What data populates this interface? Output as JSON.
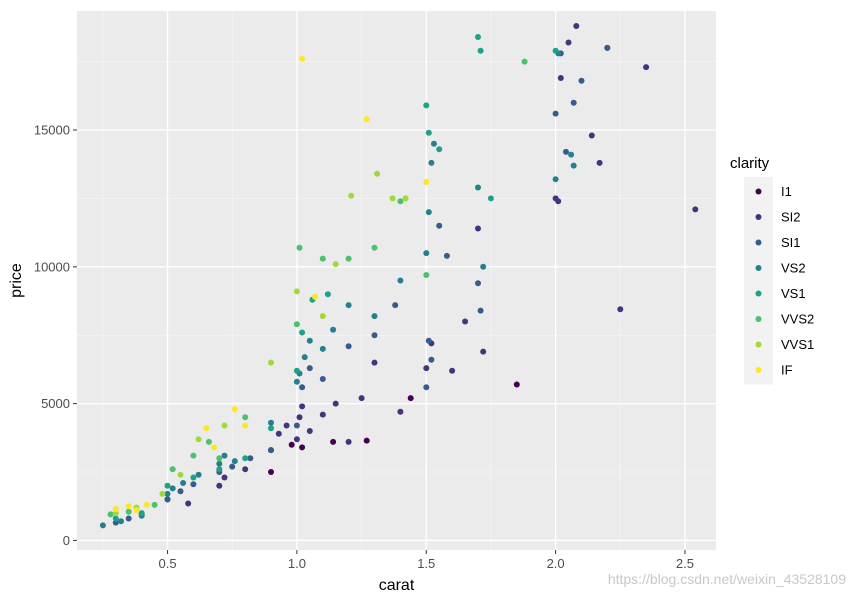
{
  "chart_data": {
    "type": "scatter",
    "xlabel": "carat",
    "ylabel": "price",
    "xlim": [
      0.15,
      2.62
    ],
    "ylim": [
      -350,
      19350
    ],
    "x_ticks": [
      0.5,
      1.0,
      1.5,
      2.0,
      2.5
    ],
    "x_tick_labels": [
      "0.5",
      "1.0",
      "1.5",
      "2.0",
      "2.5"
    ],
    "y_ticks": [
      0,
      5000,
      10000,
      15000
    ],
    "y_tick_labels": [
      "0",
      "5000",
      "10000",
      "15000"
    ],
    "grid": true,
    "legend": {
      "title": "clarity",
      "position": "right"
    },
    "series": [
      {
        "name": "I1",
        "color": "#440154",
        "x": [
          0.9,
          0.98,
          1.02,
          1.14,
          1.27,
          1.44,
          1.85
        ],
        "y": [
          2500,
          3500,
          3400,
          3600,
          3650,
          5200,
          5700
        ]
      },
      {
        "name": "SI2",
        "color": "#46337E",
        "x": [
          0.5,
          0.58,
          0.7,
          0.72,
          0.8,
          0.9,
          0.93,
          0.96,
          1.0,
          1.01,
          1.02,
          1.05,
          1.1,
          1.15,
          1.2,
          1.25,
          1.3,
          1.4,
          1.5,
          1.52,
          1.6,
          1.65,
          1.7,
          1.72,
          2.0,
          2.01,
          2.02,
          2.05,
          2.08,
          2.14,
          2.17,
          2.2,
          2.25,
          2.35,
          2.54
        ],
        "y": [
          1500,
          1350,
          2000,
          2300,
          2600,
          3300,
          3900,
          4200,
          3700,
          4500,
          4900,
          4000,
          4600,
          5000,
          3600,
          5200,
          6500,
          4700,
          6300,
          7200,
          6200,
          8000,
          11400,
          6900,
          12500,
          12400,
          16900,
          18200,
          18800,
          14800,
          13800,
          18000,
          8450,
          17300,
          12100
        ]
      },
      {
        "name": "SI1",
        "color": "#365C8D",
        "x": [
          0.3,
          0.35,
          0.4,
          0.5,
          0.55,
          0.6,
          0.7,
          0.75,
          0.82,
          0.9,
          1.0,
          1.02,
          1.05,
          1.1,
          1.2,
          1.3,
          1.38,
          1.5,
          1.51,
          1.52,
          1.55,
          1.58,
          1.7,
          1.71,
          2.0,
          2.02,
          2.04,
          2.07,
          2.1,
          2.2
        ],
        "y": [
          650,
          800,
          950,
          1500,
          1800,
          2050,
          2500,
          2700,
          3000,
          3300,
          4200,
          5600,
          6300,
          5900,
          7100,
          7500,
          8600,
          5600,
          7300,
          6600,
          11500,
          10400,
          9400,
          8400,
          15600,
          17800,
          14200,
          16000,
          16800,
          18000
        ]
      },
      {
        "name": "VS2",
        "color": "#277F8E",
        "x": [
          0.25,
          0.32,
          0.4,
          0.5,
          0.52,
          0.56,
          0.62,
          0.7,
          0.72,
          0.76,
          0.9,
          1.0,
          1.01,
          1.03,
          1.05,
          1.1,
          1.14,
          1.2,
          1.3,
          1.4,
          1.5,
          1.51,
          1.52,
          1.53,
          1.7,
          1.72,
          2.0,
          2.01,
          2.06,
          2.07
        ],
        "y": [
          550,
          700,
          900,
          1700,
          1900,
          2100,
          2400,
          2800,
          3100,
          2900,
          4300,
          5800,
          6100,
          6700,
          7300,
          7000,
          7700,
          8600,
          8200,
          9500,
          10500,
          12000,
          13800,
          14500,
          12900,
          10000,
          13200,
          17800,
          14100,
          13700
        ]
      },
      {
        "name": "VS1",
        "color": "#1FA187",
        "x": [
          0.3,
          0.4,
          0.5,
          0.6,
          0.7,
          0.8,
          0.9,
          1.0,
          1.02,
          1.06,
          1.12,
          1.5,
          1.51,
          1.55,
          1.7,
          1.71,
          1.75,
          2.0
        ],
        "y": [
          800,
          1000,
          2000,
          2300,
          2600,
          3000,
          4100,
          6200,
          7600,
          8800,
          9000,
          15900,
          14900,
          14300,
          18400,
          17900,
          12500,
          17900
        ]
      },
      {
        "name": "VVS2",
        "color": "#4AC16D",
        "x": [
          0.28,
          0.35,
          0.45,
          0.52,
          0.6,
          0.66,
          0.7,
          0.8,
          1.0,
          1.01,
          1.1,
          1.2,
          1.3,
          1.4,
          1.5,
          1.88
        ],
        "y": [
          950,
          1050,
          1300,
          2600,
          3100,
          3600,
          3000,
          4500,
          7900,
          10700,
          10300,
          10300,
          10700,
          12400,
          9700,
          17500
        ]
      },
      {
        "name": "VVS1",
        "color": "#9FDA3A",
        "x": [
          0.3,
          0.38,
          0.48,
          0.55,
          0.62,
          0.72,
          0.9,
          1.0,
          1.1,
          1.15,
          1.21,
          1.31,
          1.37,
          1.42
        ],
        "y": [
          1000,
          1200,
          1700,
          2400,
          3700,
          4200,
          6500,
          9100,
          8200,
          10100,
          12600,
          13400,
          12500,
          12500
        ]
      },
      {
        "name": "IF",
        "color": "#FDE725",
        "x": [
          0.3,
          0.35,
          0.38,
          0.42,
          0.65,
          0.68,
          0.76,
          0.8,
          1.02,
          1.07,
          1.27,
          1.5
        ],
        "y": [
          1150,
          1250,
          1100,
          1300,
          4100,
          3400,
          4800,
          4200,
          17600,
          8900,
          15400,
          13100
        ]
      }
    ]
  },
  "watermark": "https://blog.csdn.net/weixin_43528109"
}
